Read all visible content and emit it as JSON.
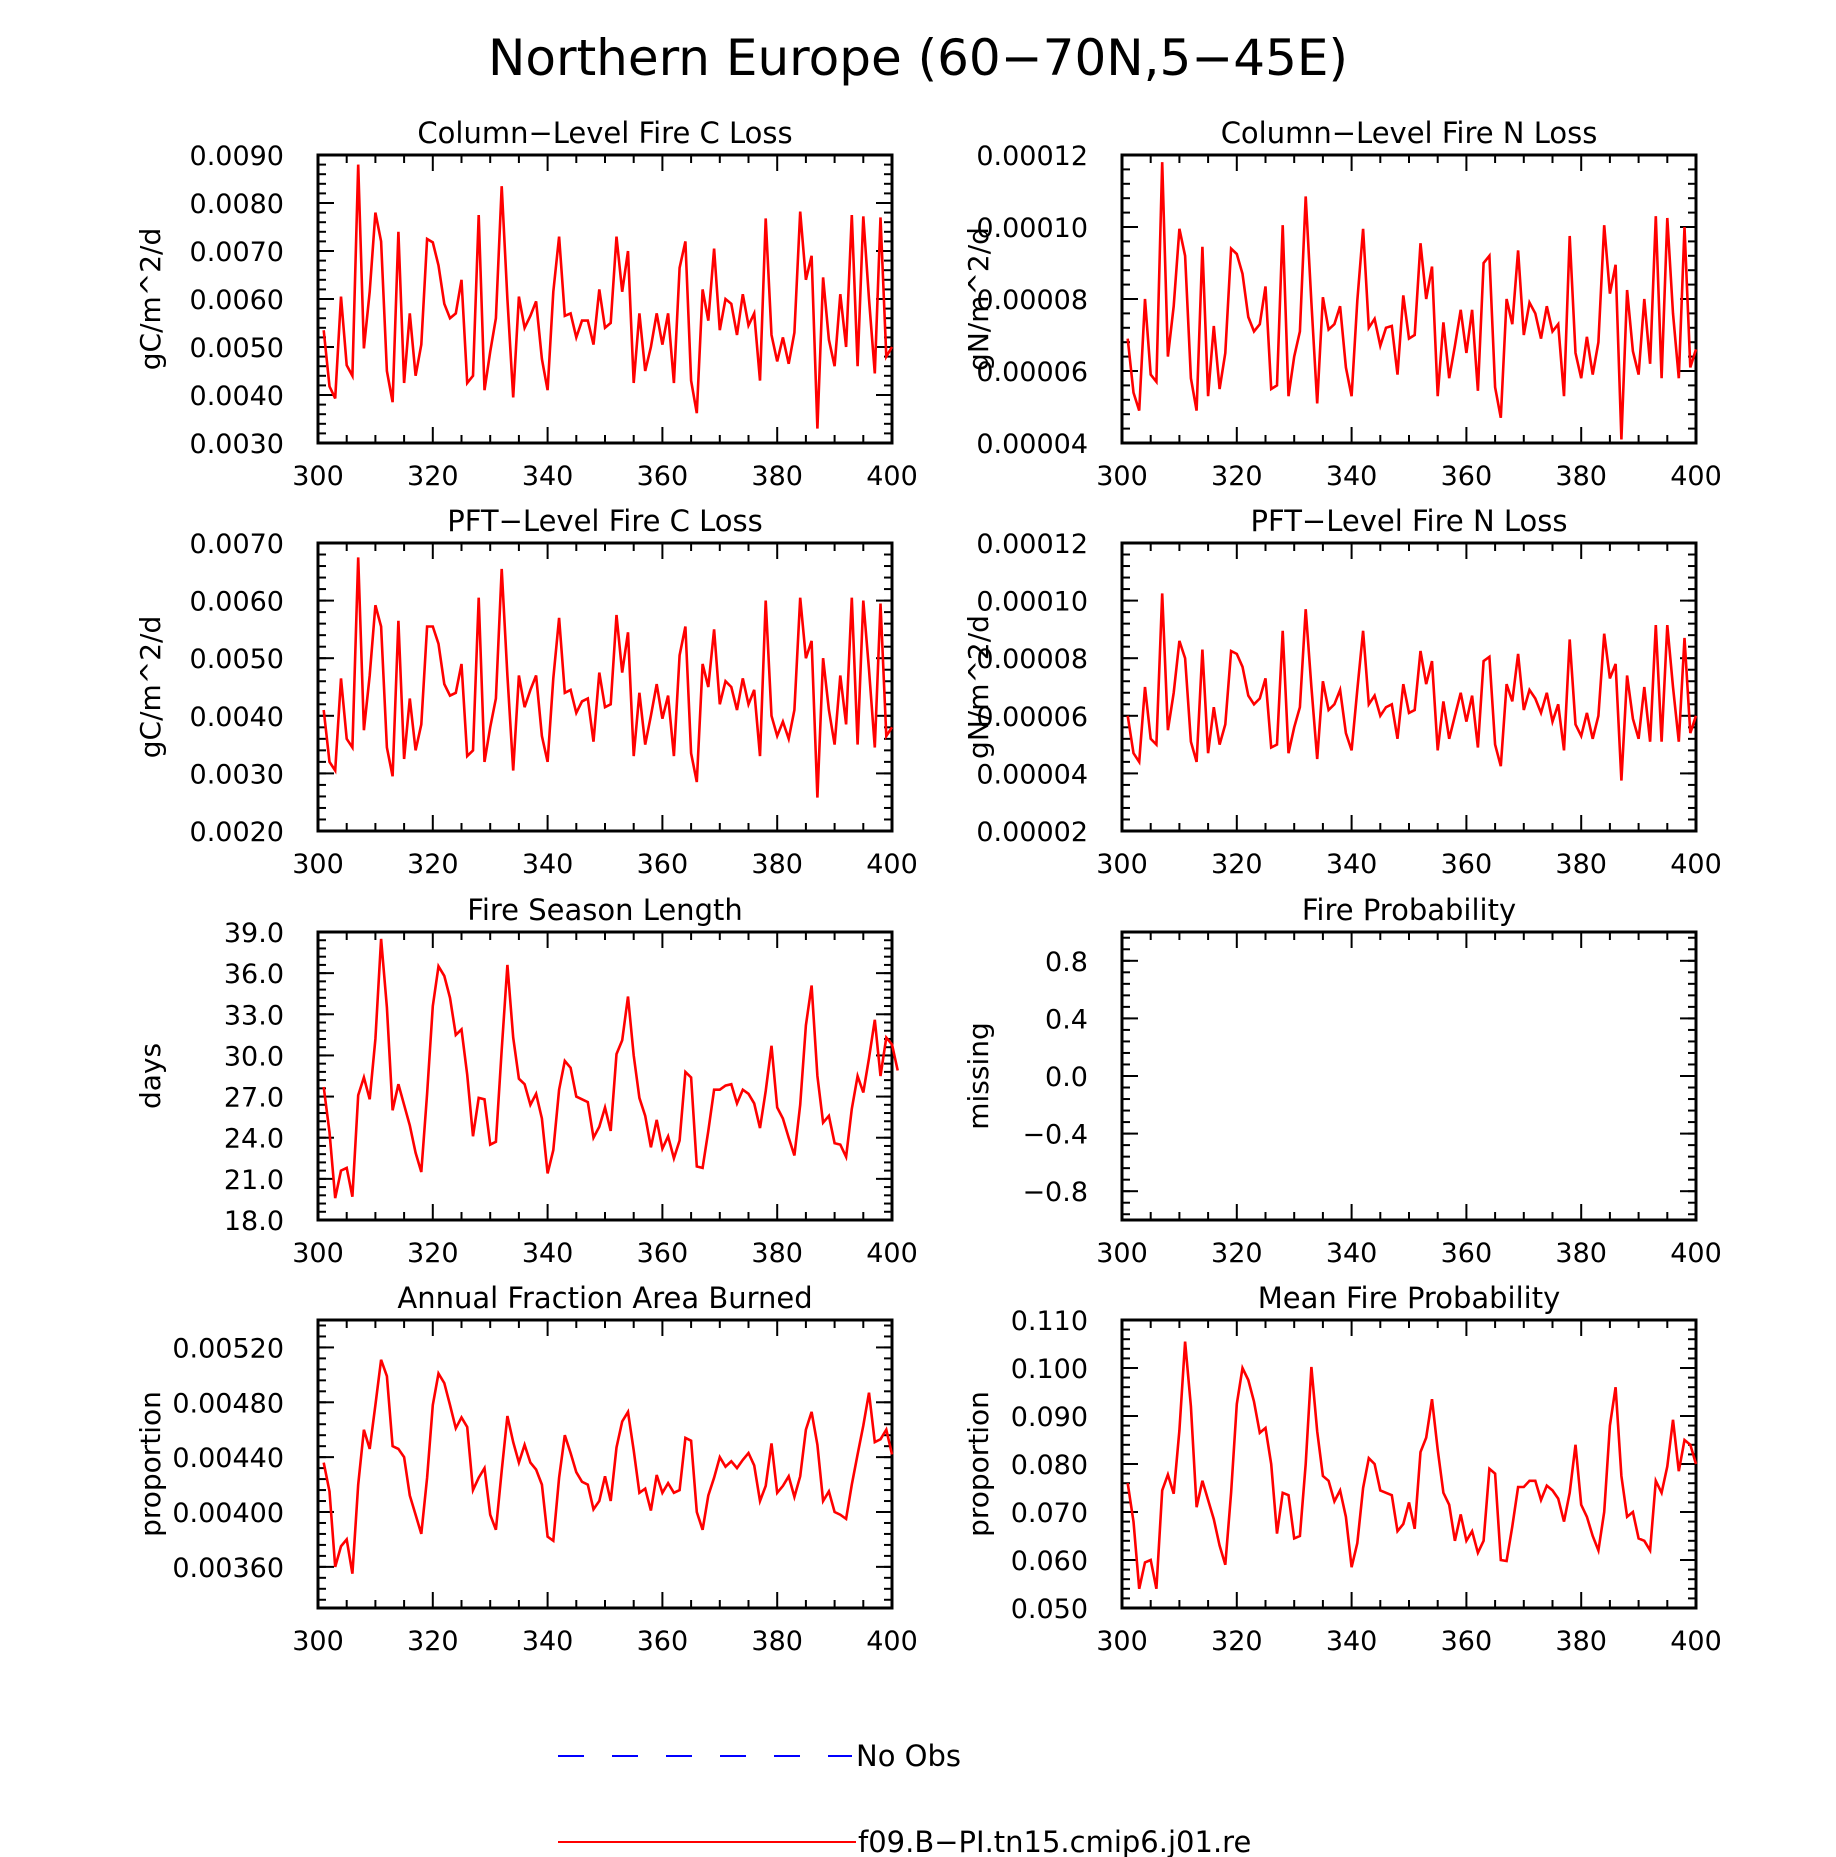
{
  "figure": {
    "title": "Northern Europe (60−70N,5−45E)"
  },
  "legend": {
    "items": [
      {
        "label": "No Obs",
        "color": "#0000ff",
        "style": "dashed"
      },
      {
        "label": "f09.B−PI.tn15.cmip6.j01.re",
        "color": "#ff0000",
        "style": "solid"
      }
    ]
  },
  "chart_data": [
    {
      "type": "line",
      "title": "Column−Level Fire C Loss",
      "ylabel": "gC/m^2/d",
      "xlim": [
        300,
        400
      ],
      "ylim": [
        0.003,
        0.009
      ],
      "xticks": [
        "300",
        "320",
        "340",
        "360",
        "380",
        "400"
      ],
      "yticks": [
        "0.0030",
        "0.0040",
        "0.0050",
        "0.0060",
        "0.0070",
        "0.0080",
        "0.0090"
      ],
      "x_start": 301,
      "series": [
        {
          "color": "#ff0000",
          "values": [
            0.00535,
            0.00418,
            0.00393,
            0.00605,
            0.00462,
            0.0044,
            0.0088,
            0.00497,
            0.00615,
            0.0078,
            0.0072,
            0.0045,
            0.00385,
            0.0074,
            0.00425,
            0.0057,
            0.0044,
            0.00505,
            0.00725,
            0.00718,
            0.0067,
            0.0059,
            0.0056,
            0.0057,
            0.0064,
            0.00425,
            0.0044,
            0.00775,
            0.0041,
            0.0049,
            0.0056,
            0.00835,
            0.006,
            0.00395,
            0.00605,
            0.0054,
            0.00565,
            0.00595,
            0.00475,
            0.0041,
            0.00615,
            0.0073,
            0.00565,
            0.0057,
            0.0052,
            0.00555,
            0.00555,
            0.00505,
            0.0062,
            0.0054,
            0.0055,
            0.0073,
            0.00615,
            0.007,
            0.00425,
            0.0057,
            0.0045,
            0.005,
            0.0057,
            0.00505,
            0.0057,
            0.00425,
            0.00665,
            0.0072,
            0.0043,
            0.00362,
            0.0062,
            0.00555,
            0.00705,
            0.00535,
            0.006,
            0.0059,
            0.00525,
            0.0061,
            0.00545,
            0.0057,
            0.0043,
            0.00768,
            0.00525,
            0.0047,
            0.0052,
            0.00465,
            0.0053,
            0.00782,
            0.0064,
            0.0069,
            0.0033,
            0.00645,
            0.00515,
            0.0046,
            0.0061,
            0.005,
            0.00775,
            0.0046,
            0.00772,
            0.006,
            0.00445,
            0.0077,
            0.0048,
            0.005
          ]
        }
      ]
    },
    {
      "type": "line",
      "title": "Column−Level Fire N Loss",
      "ylabel": "gN/m^2/d",
      "xlim": [
        300,
        400
      ],
      "ylim": [
        4e-05,
        0.00012
      ],
      "xticks": [
        "300",
        "320",
        "340",
        "360",
        "380",
        "400"
      ],
      "yticks": [
        "0.00004",
        "0.00006",
        "0.00008",
        "0.00010",
        "0.00012"
      ],
      "x_start": 301,
      "series": [
        {
          "color": "#ff0000",
          "values": [
            6.9e-05,
            5.4e-05,
            4.9e-05,
            8e-05,
            5.9e-05,
            5.7e-05,
            0.000118,
            6.4e-05,
            7.8e-05,
            9.95e-05,
            9.2e-05,
            5.8e-05,
            4.9e-05,
            9.45e-05,
            5.3e-05,
            7.25e-05,
            5.5e-05,
            6.5e-05,
            9.4e-05,
            9.25e-05,
            8.7e-05,
            7.5e-05,
            7.1e-05,
            7.3e-05,
            8.35e-05,
            5.5e-05,
            5.6e-05,
            0.0001005,
            5.3e-05,
            6.4e-05,
            7.1e-05,
            0.0001085,
            7.9e-05,
            5.1e-05,
            8.05e-05,
            7.15e-05,
            7.3e-05,
            7.8e-05,
            6.1e-05,
            5.3e-05,
            7.95e-05,
            9.95e-05,
            7.2e-05,
            7.45e-05,
            6.7e-05,
            7.2e-05,
            7.25e-05,
            5.9e-05,
            8.1e-05,
            6.9e-05,
            7e-05,
            9.55e-05,
            8e-05,
            8.9e-05,
            5.3e-05,
            7.35e-05,
            5.8e-05,
            6.7e-05,
            7.7e-05,
            6.5e-05,
            7.7e-05,
            5.45e-05,
            9e-05,
            9.2e-05,
            5.55e-05,
            4.7e-05,
            8e-05,
            7.3e-05,
            9.35e-05,
            7e-05,
            7.9e-05,
            7.6e-05,
            6.9e-05,
            7.8e-05,
            7.1e-05,
            7.3e-05,
            5.3e-05,
            9.75e-05,
            6.5e-05,
            5.8e-05,
            6.95e-05,
            5.9e-05,
            6.8e-05,
            0.0001005,
            8.15e-05,
            8.95e-05,
            4.1e-05,
            8.25e-05,
            6.55e-05,
            5.9e-05,
            8e-05,
            6.2e-05,
            0.000103,
            5.8e-05,
            0.0001025,
            7.6e-05,
            5.8e-05,
            0.0001,
            6.1e-05,
            6.6e-05
          ]
        }
      ]
    },
    {
      "type": "line",
      "title": "PFT−Level Fire C Loss",
      "ylabel": "gC/m^2/d",
      "xlim": [
        300,
        400
      ],
      "ylim": [
        0.002,
        0.007
      ],
      "xticks": [
        "300",
        "320",
        "340",
        "360",
        "380",
        "400"
      ],
      "yticks": [
        "0.0020",
        "0.0030",
        "0.0040",
        "0.0050",
        "0.0060",
        "0.0070"
      ],
      "x_start": 301,
      "series": [
        {
          "color": "#ff0000",
          "values": [
            0.0041,
            0.0032,
            0.00305,
            0.00465,
            0.0036,
            0.00345,
            0.00675,
            0.00375,
            0.0047,
            0.00592,
            0.00555,
            0.00345,
            0.00295,
            0.00565,
            0.00325,
            0.0043,
            0.0034,
            0.00385,
            0.00555,
            0.00555,
            0.00525,
            0.00455,
            0.00435,
            0.0044,
            0.0049,
            0.0033,
            0.0034,
            0.00605,
            0.0032,
            0.0038,
            0.0043,
            0.00655,
            0.0047,
            0.00305,
            0.0047,
            0.00415,
            0.00445,
            0.0047,
            0.00365,
            0.0032,
            0.00465,
            0.0057,
            0.0044,
            0.00445,
            0.00405,
            0.00425,
            0.0043,
            0.00355,
            0.00475,
            0.00415,
            0.0042,
            0.00575,
            0.00475,
            0.00545,
            0.0033,
            0.0044,
            0.0035,
            0.004,
            0.00455,
            0.00395,
            0.00435,
            0.0033,
            0.00505,
            0.00555,
            0.00335,
            0.00285,
            0.0049,
            0.0045,
            0.0055,
            0.0042,
            0.0046,
            0.0045,
            0.0041,
            0.00465,
            0.0042,
            0.00445,
            0.0033,
            0.006,
            0.004,
            0.00365,
            0.0039,
            0.0036,
            0.0041,
            0.00605,
            0.005,
            0.0053,
            0.00258,
            0.005,
            0.0041,
            0.0035,
            0.0047,
            0.00385,
            0.00605,
            0.0035,
            0.006,
            0.0048,
            0.00345,
            0.00595,
            0.00365,
            0.0038
          ]
        }
      ]
    },
    {
      "type": "line",
      "title": "PFT−Level Fire N Loss",
      "ylabel": "gN/m^2/d",
      "xlim": [
        300,
        400
      ],
      "ylim": [
        2e-05,
        0.00012
      ],
      "xticks": [
        "300",
        "320",
        "340",
        "360",
        "380",
        "400"
      ],
      "yticks": [
        "0.00002",
        "0.00004",
        "0.00006",
        "0.00008",
        "0.00010",
        "0.00012"
      ],
      "x_start": 301,
      "series": [
        {
          "color": "#ff0000",
          "values": [
            6e-05,
            4.7e-05,
            4.4e-05,
            7e-05,
            5.2e-05,
            5e-05,
            0.0001025,
            5.5e-05,
            6.8e-05,
            8.6e-05,
            8e-05,
            5.1e-05,
            4.4e-05,
            8.3e-05,
            4.7e-05,
            6.3e-05,
            5e-05,
            5.7e-05,
            8.25e-05,
            8.15e-05,
            7.7e-05,
            6.7e-05,
            6.4e-05,
            6.6e-05,
            7.3e-05,
            4.9e-05,
            5e-05,
            8.95e-05,
            4.7e-05,
            5.6e-05,
            6.3e-05,
            9.7e-05,
            7e-05,
            4.5e-05,
            7.2e-05,
            6.2e-05,
            6.4e-05,
            6.9e-05,
            5.4e-05,
            4.8e-05,
            6.9e-05,
            8.95e-05,
            6.4e-05,
            6.7e-05,
            6e-05,
            6.3e-05,
            6.4e-05,
            5.2e-05,
            7.1e-05,
            6.1e-05,
            6.2e-05,
            8.25e-05,
            7.1e-05,
            7.9e-05,
            4.8e-05,
            6.5e-05,
            5.2e-05,
            6e-05,
            6.8e-05,
            5.8e-05,
            6.7e-05,
            4.9e-05,
            7.9e-05,
            8.05e-05,
            5e-05,
            4.25e-05,
            7.1e-05,
            6.5e-05,
            8.15e-05,
            6.2e-05,
            6.9e-05,
            6.6e-05,
            6.1e-05,
            6.8e-05,
            5.8e-05,
            6.4e-05,
            4.8e-05,
            8.65e-05,
            5.7e-05,
            5.3e-05,
            6.1e-05,
            5.2e-05,
            6e-05,
            8.85e-05,
            7.3e-05,
            7.8e-05,
            3.75e-05,
            7.4e-05,
            5.9e-05,
            5.2e-05,
            7e-05,
            5.1e-05,
            9.15e-05,
            5.1e-05,
            9.15e-05,
            7e-05,
            5.1e-05,
            8.7e-05,
            5.4e-05,
            6e-05
          ]
        }
      ]
    },
    {
      "type": "line",
      "title": "Fire Season Length",
      "ylabel": "days",
      "xlim": [
        300,
        400
      ],
      "ylim": [
        18.0,
        39.0
      ],
      "xticks": [
        "300",
        "320",
        "340",
        "360",
        "380",
        "400"
      ],
      "yticks": [
        "18.0",
        "21.0",
        "24.0",
        "27.0",
        "30.0",
        "33.0",
        "36.0",
        "39.0"
      ],
      "x_start": 301,
      "series": [
        {
          "color": "#ff0000",
          "values": [
            27.7,
            24.4,
            19.6,
            21.6,
            21.8,
            19.7,
            27.1,
            28.4,
            26.8,
            31.2,
            38.5,
            33.5,
            26.0,
            27.9,
            26.4,
            24.9,
            22.9,
            21.5,
            27.2,
            33.6,
            36.5,
            35.8,
            34.2,
            31.5,
            31.9,
            28.6,
            24.1,
            26.9,
            26.8,
            23.5,
            23.7,
            30.4,
            36.6,
            31.3,
            28.3,
            27.9,
            26.4,
            27.2,
            25.4,
            21.4,
            23.1,
            27.5,
            29.6,
            29.1,
            27.0,
            26.8,
            26.6,
            24.0,
            24.8,
            26.2,
            24.5,
            30.1,
            31.1,
            34.3,
            30.0,
            26.9,
            25.6,
            23.3,
            25.3,
            23.2,
            24.1,
            22.5,
            23.8,
            28.8,
            28.4,
            21.9,
            21.8,
            24.5,
            27.5,
            27.5,
            27.8,
            27.9,
            26.5,
            27.5,
            27.2,
            26.5,
            24.7,
            27.4,
            30.7,
            26.2,
            25.4,
            24.0,
            22.7,
            26.4,
            32.2,
            35.1,
            28.5,
            25.1,
            25.6,
            23.6,
            23.5,
            22.6,
            26.1,
            28.5,
            27.3,
            29.8,
            32.6,
            28.5,
            31.3,
            30.8,
            28.9
          ]
        }
      ]
    },
    {
      "type": "line",
      "title": "Fire Probability",
      "ylabel": "missing",
      "xlim": [
        300,
        400
      ],
      "ylim": [
        -1.0,
        1.0
      ],
      "xticks": [
        "300",
        "320",
        "340",
        "360",
        "380",
        "400"
      ],
      "yticks": [
        "−0.8",
        "−0.4",
        "0.0",
        "0.4",
        "0.8"
      ],
      "series": []
    },
    {
      "type": "line",
      "title": "Annual Fraction Area Burned",
      "ylabel": "proportion",
      "xlim": [
        300,
        400
      ],
      "ylim": [
        0.0033,
        0.0054
      ],
      "xticks": [
        "300",
        "320",
        "340",
        "360",
        "380",
        "400"
      ],
      "yticks": [
        "0.00360",
        "0.00400",
        "0.00440",
        "0.00480",
        "0.00520"
      ],
      "x_start": 301,
      "series": [
        {
          "color": "#ff0000",
          "values": [
            0.00436,
            0.00415,
            0.0036,
            0.00375,
            0.0038,
            0.00355,
            0.0042,
            0.0046,
            0.00446,
            0.00478,
            0.00511,
            0.00499,
            0.00448,
            0.00446,
            0.0044,
            0.00412,
            0.00398,
            0.00384,
            0.00425,
            0.00478,
            0.00501,
            0.00494,
            0.00478,
            0.00461,
            0.00469,
            0.00462,
            0.00416,
            0.00425,
            0.00432,
            0.00398,
            0.00387,
            0.0043,
            0.0047,
            0.00451,
            0.00436,
            0.00449,
            0.00436,
            0.00431,
            0.0042,
            0.00382,
            0.00379,
            0.00425,
            0.00456,
            0.00443,
            0.00429,
            0.00422,
            0.0042,
            0.00402,
            0.00408,
            0.00426,
            0.00408,
            0.00447,
            0.00466,
            0.00473,
            0.00445,
            0.00414,
            0.00417,
            0.00401,
            0.00427,
            0.00414,
            0.00421,
            0.00414,
            0.00416,
            0.00454,
            0.00452,
            0.004,
            0.00387,
            0.00412,
            0.00425,
            0.0044,
            0.00433,
            0.00437,
            0.00432,
            0.00438,
            0.00443,
            0.00434,
            0.00408,
            0.00419,
            0.0045,
            0.00414,
            0.00419,
            0.00426,
            0.00411,
            0.00426,
            0.0046,
            0.00473,
            0.00449,
            0.00408,
            0.00415,
            0.004,
            0.00398,
            0.00395,
            0.0042,
            0.00442,
            0.00463,
            0.00487,
            0.00451,
            0.00453,
            0.0046,
            0.00442
          ]
        }
      ]
    },
    {
      "type": "line",
      "title": "Mean Fire Probability",
      "ylabel": "proportion",
      "xlim": [
        300,
        400
      ],
      "ylim": [
        0.05,
        0.11
      ],
      "xticks": [
        "300",
        "320",
        "340",
        "360",
        "380",
        "400"
      ],
      "yticks": [
        "0.050",
        "0.060",
        "0.070",
        "0.080",
        "0.090",
        "0.100",
        "0.110"
      ],
      "x_start": 301,
      "series": [
        {
          "color": "#ff0000",
          "values": [
            0.076,
            0.068,
            0.054,
            0.0595,
            0.06,
            0.054,
            0.0745,
            0.0778,
            0.0738,
            0.087,
            0.1055,
            0.092,
            0.071,
            0.0765,
            0.0725,
            0.0685,
            0.063,
            0.059,
            0.074,
            0.0925,
            0.1,
            0.0975,
            0.093,
            0.0865,
            0.0875,
            0.08,
            0.0655,
            0.074,
            0.0735,
            0.0645,
            0.065,
            0.08,
            0.1002,
            0.0868,
            0.0775,
            0.0765,
            0.0722,
            0.0745,
            0.069,
            0.0585,
            0.0635,
            0.075,
            0.0812,
            0.08,
            0.0745,
            0.074,
            0.0735,
            0.066,
            0.0675,
            0.072,
            0.0665,
            0.0825,
            0.0855,
            0.0935,
            0.083,
            0.074,
            0.0715,
            0.064,
            0.0695,
            0.064,
            0.066,
            0.0615,
            0.064,
            0.079,
            0.078,
            0.06,
            0.0598,
            0.067,
            0.0752,
            0.0752,
            0.0765,
            0.0765,
            0.0725,
            0.0755,
            0.0745,
            0.0728,
            0.068,
            0.074,
            0.084,
            0.0715,
            0.069,
            0.065,
            0.062,
            0.07,
            0.088,
            0.096,
            0.0775,
            0.069,
            0.07,
            0.0645,
            0.064,
            0.062,
            0.0765,
            0.074,
            0.0795,
            0.0892,
            0.0785,
            0.085,
            0.084,
            0.08
          ]
        }
      ]
    }
  ]
}
